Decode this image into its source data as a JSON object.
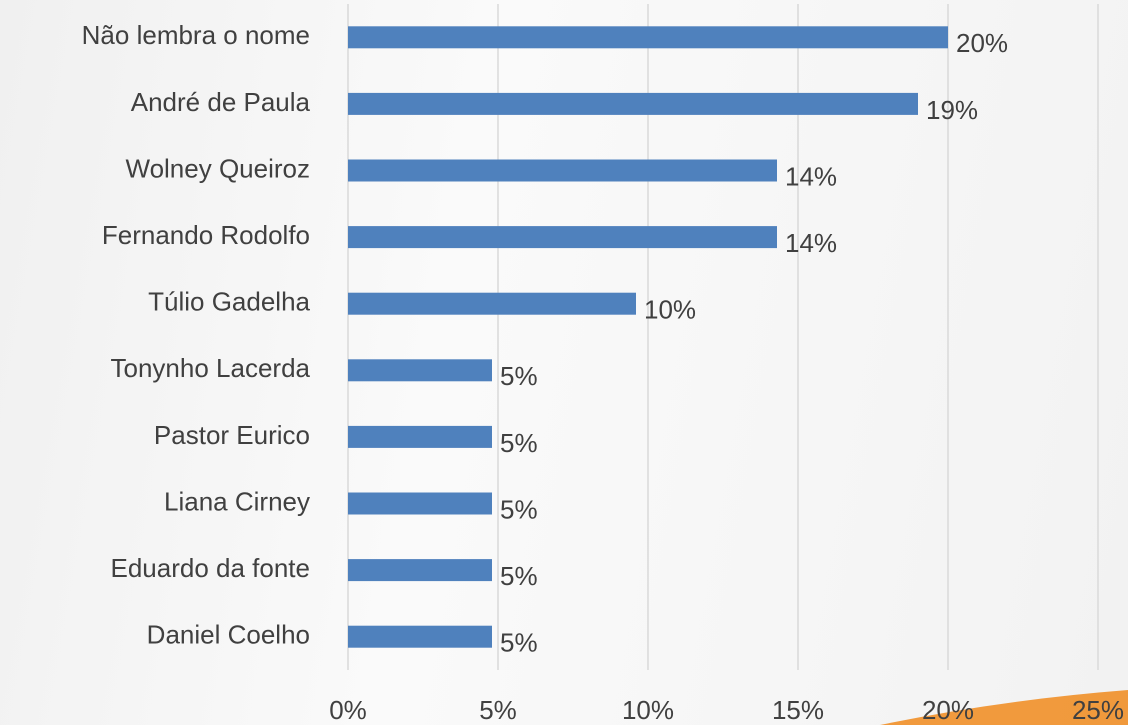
{
  "chart_data": {
    "type": "bar",
    "orientation": "horizontal",
    "categories": [
      "Não lembra o nome",
      "André de Paula",
      "Wolney Queiroz",
      "Fernando Rodolfo",
      "Túlio Gadelha",
      "Tonynho Lacerda",
      "Pastor Eurico",
      "Liana Cirney",
      "Eduardo da fonte",
      "Daniel Coelho"
    ],
    "values": [
      20,
      19,
      14.3,
      14.3,
      9.6,
      4.8,
      4.8,
      4.8,
      4.8,
      4.8
    ],
    "value_labels": [
      "20%",
      "19%",
      "14%",
      "14%",
      "10%",
      "5%",
      "5%",
      "5%",
      "5%",
      "5%"
    ],
    "color": "#4f81bd",
    "xlim": [
      0,
      25
    ],
    "xticks": [
      {
        "value": 0,
        "label": "0%"
      },
      {
        "value": 5,
        "label": "5%"
      },
      {
        "value": 10,
        "label": "10%"
      },
      {
        "value": 15,
        "label": "15%"
      },
      {
        "value": 20,
        "label": "20%"
      },
      {
        "value": 25,
        "label": "25%"
      }
    ],
    "grid": true
  }
}
